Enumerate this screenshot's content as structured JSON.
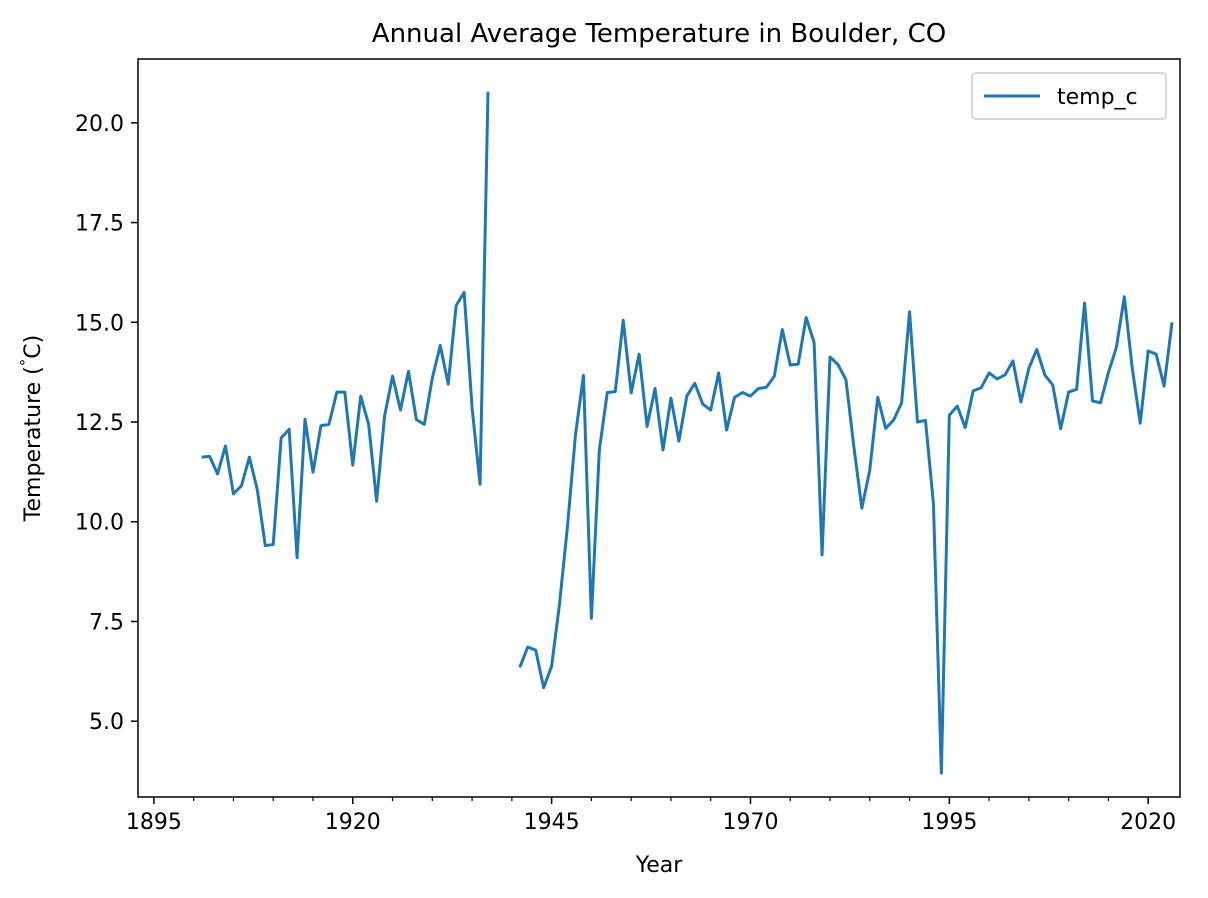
{
  "chart_data": {
    "type": "line",
    "title": "Annual Average Temperature in Boulder, CO",
    "xlabel": "Year",
    "ylabel": "Temperature ($^\\circ$C)",
    "xlim": [
      1893,
      2024
    ],
    "ylim": [
      3.1,
      21.6
    ],
    "xticks": [
      1895,
      1920,
      1945,
      1970,
      1995,
      2020
    ],
    "xtick_labels": [
      "1895",
      "1920",
      "1945",
      "1970",
      "1995",
      "2020"
    ],
    "yticks": [
      5.0,
      7.5,
      10.0,
      12.5,
      15.0,
      17.5,
      20.0
    ],
    "ytick_labels": [
      "5.0",
      "7.5",
      "10.0",
      "12.5",
      "15.0",
      "17.5",
      "20.0"
    ],
    "minor_xtick_step": 5,
    "legend": {
      "location": "top-right",
      "entries": [
        "temp_c"
      ]
    },
    "series": [
      {
        "name": "temp_c",
        "color": "#1f77b4",
        "x": [
          1901,
          1902,
          1903,
          1904,
          1905,
          1906,
          1907,
          1908,
          1909,
          1910,
          1911,
          1912,
          1913,
          1914,
          1915,
          1916,
          1917,
          1918,
          1919,
          1920,
          1921,
          1922,
          1923,
          1924,
          1925,
          1926,
          1927,
          1928,
          1929,
          1930,
          1931,
          1932,
          1933,
          1934,
          1935,
          1936,
          1937,
          1938,
          1939,
          1940,
          1941,
          1942,
          1943,
          1944,
          1945,
          1946,
          1947,
          1948,
          1949,
          1950,
          1951,
          1952,
          1953,
          1954,
          1955,
          1956,
          1957,
          1958,
          1959,
          1960,
          1961,
          1962,
          1963,
          1964,
          1965,
          1966,
          1967,
          1968,
          1969,
          1970,
          1971,
          1972,
          1973,
          1974,
          1975,
          1976,
          1977,
          1978,
          1979,
          1980,
          1981,
          1982,
          1983,
          1984,
          1985,
          1986,
          1987,
          1988,
          1989,
          1990,
          1991,
          1992,
          1993,
          1994,
          1995,
          1996,
          1997,
          1998,
          1999,
          2000,
          2001,
          2002,
          2003,
          2004,
          2005,
          2006,
          2007,
          2008,
          2009,
          2010,
          2011,
          2012,
          2013,
          2014,
          2015,
          2016,
          2017,
          2018,
          2019,
          2020,
          2021,
          2022,
          2023
        ],
        "values": [
          11.62,
          11.64,
          11.2,
          11.9,
          10.7,
          10.9,
          11.62,
          10.8,
          9.4,
          9.43,
          12.1,
          12.32,
          9.1,
          12.57,
          11.24,
          12.41,
          12.44,
          13.25,
          13.25,
          11.42,
          13.15,
          12.44,
          10.51,
          12.65,
          13.65,
          12.8,
          13.77,
          12.56,
          12.44,
          13.6,
          14.42,
          13.45,
          15.42,
          15.75,
          12.86,
          10.94,
          20.78,
          null,
          null,
          null,
          6.35,
          6.86,
          6.78,
          5.84,
          6.38,
          7.95,
          9.9,
          12.18,
          13.67,
          7.58,
          11.8,
          13.24,
          13.26,
          15.05,
          13.23,
          14.2,
          12.39,
          13.34,
          11.8,
          13.1,
          12.02,
          13.15,
          13.47,
          12.95,
          12.8,
          13.73,
          12.3,
          13.12,
          13.24,
          13.15,
          13.34,
          13.37,
          13.65,
          14.82,
          13.93,
          13.95,
          15.12,
          14.49,
          9.17,
          14.13,
          13.94,
          13.56,
          11.88,
          10.34,
          11.3,
          13.12,
          12.34,
          12.55,
          12.98,
          15.26,
          12.5,
          12.54,
          10.46,
          3.7,
          12.67,
          12.9,
          12.36,
          13.28,
          13.36,
          13.73,
          13.58,
          13.68,
          14.03,
          13.0,
          13.85,
          14.32,
          13.68,
          13.43,
          12.33,
          13.25,
          13.32,
          15.48,
          13.03,
          12.98,
          13.74,
          14.37,
          15.64,
          13.84,
          12.47,
          14.28,
          14.2,
          13.4,
          15.0
        ]
      }
    ]
  }
}
